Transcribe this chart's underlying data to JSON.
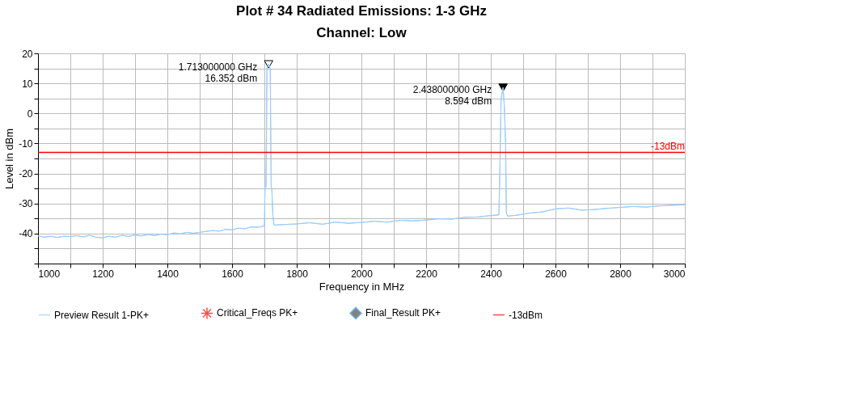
{
  "chart_data": {
    "type": "line",
    "title": "Plot # 34 Radiated Emissions: 1-3 GHz",
    "subtitle": "Channel: Low",
    "xlabel": "Frequency in MHz",
    "ylabel": "Level in dBm",
    "xlim": [
      1000,
      3000
    ],
    "ylim": [
      -50,
      20
    ],
    "xticks": [
      1000,
      {
        "value": 1100,
        "label": null
      },
      1200,
      {
        "value": 1300,
        "label": null
      },
      1400,
      {
        "value": 1500,
        "label": null
      },
      1600,
      {
        "value": 1700,
        "label": null
      },
      1800,
      {
        "value": 1900,
        "label": null
      },
      2000,
      {
        "value": 2100,
        "label": null
      },
      2200,
      {
        "value": 2300,
        "label": null
      },
      2400,
      {
        "value": 2500,
        "label": null
      },
      2600,
      {
        "value": 2700,
        "label": null
      },
      2800,
      {
        "value": 2900,
        "label": null
      },
      3000
    ],
    "yticks": [
      20,
      {
        "value": 15,
        "label": null
      },
      10,
      {
        "value": 5,
        "label": null
      },
      0,
      {
        "value": -5,
        "label": null
      },
      -10,
      {
        "value": -15,
        "label": null
      },
      -20,
      {
        "value": -25,
        "label": null
      },
      -30,
      {
        "value": -35,
        "label": null
      },
      -40,
      {
        "value": -45,
        "label": null
      },
      {
        "value": -50,
        "label": null
      }
    ],
    "grid": true,
    "legend": "bottom",
    "line_style": "solid",
    "series": [
      {
        "name": "Preview Result 1-PK+",
        "color": "#99ccff",
        "x": [
          1000,
          1020,
          1040,
          1060,
          1080,
          1100,
          1120,
          1140,
          1160,
          1180,
          1200,
          1220,
          1240,
          1260,
          1280,
          1300,
          1320,
          1340,
          1360,
          1380,
          1400,
          1420,
          1440,
          1460,
          1480,
          1500,
          1520,
          1540,
          1560,
          1580,
          1600,
          1620,
          1640,
          1660,
          1680,
          1700,
          1702,
          1705,
          1708,
          1713,
          1718,
          1721,
          1723,
          1726,
          1730,
          1760,
          1800,
          1840,
          1880,
          1920,
          1960,
          2000,
          2040,
          2080,
          2120,
          2160,
          2200,
          2240,
          2280,
          2320,
          2360,
          2400,
          2425,
          2428,
          2432,
          2438,
          2442,
          2446,
          2448,
          2452,
          2480,
          2520,
          2560,
          2600,
          2640,
          2680,
          2720,
          2760,
          2800,
          2840,
          2880,
          2920,
          2960,
          3000
        ],
        "values": [
          -40.8,
          -41.2,
          -40.9,
          -41.3,
          -40.9,
          -41.0,
          -40.7,
          -41.1,
          -40.6,
          -41.2,
          -41.4,
          -40.9,
          -41.2,
          -40.6,
          -41.0,
          -40.5,
          -40.8,
          -40.3,
          -40.7,
          -40.2,
          -40.4,
          -39.8,
          -40.1,
          -39.6,
          -39.9,
          -39.6,
          -39.3,
          -39.0,
          -39.2,
          -38.6,
          -38.8,
          -38.2,
          -38.4,
          -37.8,
          -37.9,
          -37.5,
          -24.0,
          -24.5,
          15.0,
          16.352,
          15.0,
          -24.5,
          -25.0,
          -34.0,
          -37.2,
          -37.0,
          -36.8,
          -36.4,
          -36.9,
          -36.2,
          -36.6,
          -36.3,
          -35.9,
          -36.2,
          -35.6,
          -35.8,
          -35.5,
          -35.1,
          -35.2,
          -34.6,
          -34.5,
          -34.0,
          -33.8,
          -20.0,
          5.0,
          8.594,
          2.0,
          -10.0,
          -33.0,
          -34.2,
          -33.9,
          -33.2,
          -32.8,
          -31.8,
          -31.5,
          -32.2,
          -32.0,
          -31.6,
          -31.3,
          -31.0,
          -31.2,
          -30.8,
          -30.6,
          -30.4
        ]
      },
      {
        "name": "Critical_Freqs PK+",
        "type": "scatter",
        "marker": "star",
        "color": "#ff0000"
      },
      {
        "name": "Final_Result PK+",
        "type": "scatter",
        "marker": "diamond",
        "color": "#3399dd"
      },
      {
        "type": "scatter",
        "marker": "triangle",
        "x": [
          1713,
          2438
        ],
        "values": [
          16.352,
          8.594
        ],
        "colors": [
          "#ffffff",
          "#000000"
        ]
      }
    ],
    "ref_lines": [
      {
        "axis": "y",
        "value": -13,
        "label": "-13dBm",
        "color": "#ff0000",
        "line_style": "solid"
      }
    ],
    "annotations": [
      {
        "text": "1.713000000 GHz\n16.352 dBm",
        "x": 1713,
        "y": 16.352
      },
      {
        "text": "2.438000000 GHz\n8.594 dBm",
        "x": 2438,
        "y": 8.594
      }
    ]
  }
}
